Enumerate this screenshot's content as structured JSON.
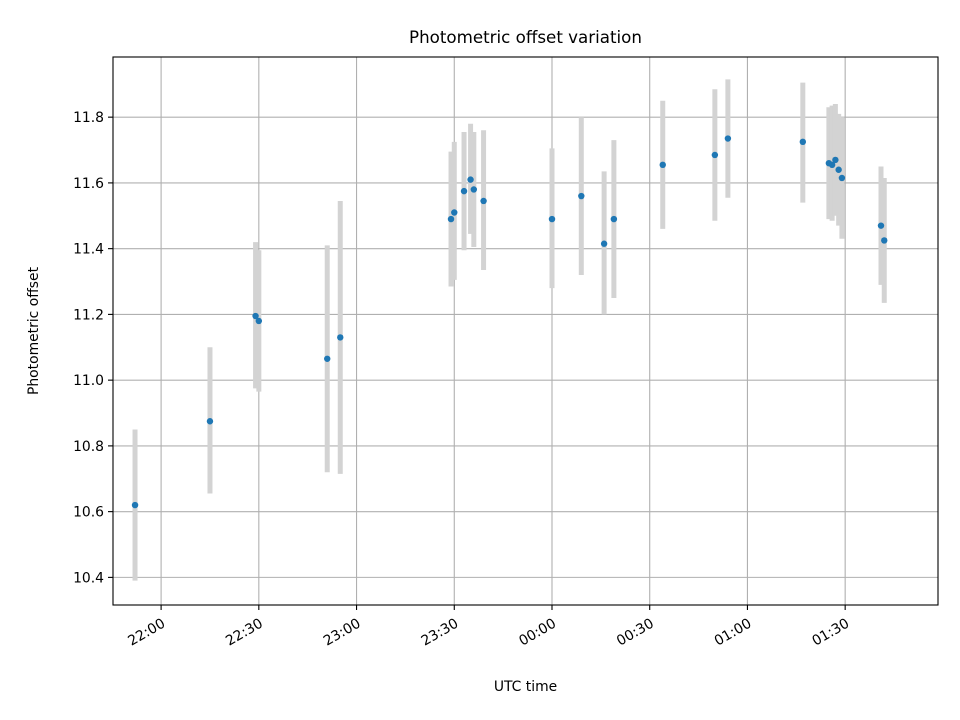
{
  "chart_data": {
    "type": "scatter",
    "title": "Photometric offset variation",
    "xlabel": "UTC time",
    "ylabel": "Photometric offset",
    "grid": true,
    "x_ticks": [
      "22:00",
      "22:30",
      "23:00",
      "23:30",
      "00:00",
      "00:30",
      "01:00",
      "01:30"
    ],
    "y_ticks": [
      "10.4",
      "10.6",
      "10.8",
      "11.0",
      "11.2",
      "11.4",
      "11.6",
      "11.8"
    ],
    "xlim": [
      "21:45:14",
      "01:58:30"
    ],
    "ylim": [
      10.316,
      11.983
    ],
    "colors": {
      "points": "#1f77b4",
      "errorbars": "#d3d3d3",
      "grid": "#b0b0b0"
    },
    "series": [
      {
        "points": [
          {
            "x": "21:52",
            "y": 10.62,
            "ylo": 10.39,
            "yhi": 10.85
          },
          {
            "x": "22:15",
            "y": 10.875,
            "ylo": 10.655,
            "yhi": 11.1
          },
          {
            "x": "22:29",
            "y": 11.195,
            "ylo": 10.975,
            "yhi": 11.42
          },
          {
            "x": "22:30",
            "y": 11.18,
            "ylo": 10.965,
            "yhi": 11.395
          },
          {
            "x": "22:51",
            "y": 11.065,
            "ylo": 10.72,
            "yhi": 11.41
          },
          {
            "x": "22:55",
            "y": 11.13,
            "ylo": 10.715,
            "yhi": 11.545
          },
          {
            "x": "23:29",
            "y": 11.49,
            "ylo": 11.285,
            "yhi": 11.695
          },
          {
            "x": "23:30",
            "y": 11.51,
            "ylo": 11.305,
            "yhi": 11.725
          },
          {
            "x": "23:33",
            "y": 11.575,
            "ylo": 11.395,
            "yhi": 11.755
          },
          {
            "x": "23:35",
            "y": 11.61,
            "ylo": 11.445,
            "yhi": 11.78
          },
          {
            "x": "23:36",
            "y": 11.58,
            "ylo": 11.405,
            "yhi": 11.755
          },
          {
            "x": "23:39",
            "y": 11.545,
            "ylo": 11.335,
            "yhi": 11.76
          },
          {
            "x": "00:00",
            "y": 11.49,
            "ylo": 11.28,
            "yhi": 11.705
          },
          {
            "x": "00:09",
            "y": 11.56,
            "ylo": 11.32,
            "yhi": 11.8
          },
          {
            "x": "00:16",
            "y": 11.415,
            "ylo": 11.2,
            "yhi": 11.635
          },
          {
            "x": "00:19",
            "y": 11.49,
            "ylo": 11.25,
            "yhi": 11.73
          },
          {
            "x": "00:34",
            "y": 11.655,
            "ylo": 11.46,
            "yhi": 11.85
          },
          {
            "x": "00:50",
            "y": 11.685,
            "ylo": 11.485,
            "yhi": 11.885
          },
          {
            "x": "00:54",
            "y": 11.735,
            "ylo": 11.555,
            "yhi": 11.915
          },
          {
            "x": "01:17",
            "y": 11.725,
            "ylo": 11.54,
            "yhi": 11.905
          },
          {
            "x": "01:25",
            "y": 11.66,
            "ylo": 11.49,
            "yhi": 11.83
          },
          {
            "x": "01:26",
            "y": 11.655,
            "ylo": 11.485,
            "yhi": 11.835
          },
          {
            "x": "01:27",
            "y": 11.67,
            "ylo": 11.5,
            "yhi": 11.84
          },
          {
            "x": "01:28",
            "y": 11.64,
            "ylo": 11.47,
            "yhi": 11.81
          },
          {
            "x": "01:29",
            "y": 11.615,
            "ylo": 11.43,
            "yhi": 11.8
          },
          {
            "x": "01:41",
            "y": 11.47,
            "ylo": 11.29,
            "yhi": 11.65
          },
          {
            "x": "01:42",
            "y": 11.425,
            "ylo": 11.235,
            "yhi": 11.615
          }
        ]
      }
    ]
  }
}
